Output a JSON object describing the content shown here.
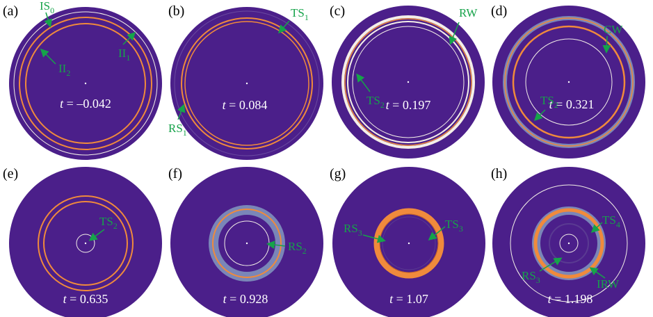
{
  "panels": [
    {
      "label": "(a)",
      "time": {
        "symbol": "t",
        "text": " = –0.042"
      },
      "annotations": [
        {
          "text": "IS",
          "sub": "0"
        },
        {
          "text": "II",
          "sub": "2"
        },
        {
          "text": "II",
          "sub": "1"
        }
      ]
    },
    {
      "label": "(b)",
      "time": {
        "symbol": "t",
        "text": " = 0.084"
      },
      "annotations": [
        {
          "text": "TS",
          "sub": "1"
        },
        {
          "text": "RS",
          "sub": "1"
        }
      ]
    },
    {
      "label": "(c)",
      "time": {
        "symbol": "t",
        "text": " = 0.197"
      },
      "annotations": [
        {
          "text": "RW",
          "sub": null
        },
        {
          "text": "TS",
          "sub": "2"
        }
      ]
    },
    {
      "label": "(d)",
      "time": {
        "symbol": "t",
        "text": " = 0.321"
      },
      "annotations": [
        {
          "text": "CW",
          "sub": null
        },
        {
          "text": "TS",
          "sub": "2"
        }
      ]
    },
    {
      "label": "(e)",
      "time": {
        "symbol": "t",
        "text": " = 0.635"
      },
      "annotations": [
        {
          "text": "TS",
          "sub": "2"
        }
      ]
    },
    {
      "label": "(f)",
      "time": {
        "symbol": "t",
        "text": " = 0.928"
      },
      "annotations": [
        {
          "text": "RS",
          "sub": "2"
        }
      ]
    },
    {
      "label": "(g)",
      "time": {
        "symbol": "t",
        "text": " = 1.07"
      },
      "annotations": [
        {
          "text": "RS",
          "sub": "3"
        },
        {
          "text": "TS",
          "sub": "3"
        }
      ]
    },
    {
      "label": "(h)",
      "time": {
        "symbol": "t",
        "text": " = 1.198"
      },
      "annotations": [
        {
          "text": "TS",
          "sub": "4"
        },
        {
          "text": "RS",
          "sub": "3"
        },
        {
          "text": "IRW",
          "sub": null
        }
      ]
    }
  ]
}
